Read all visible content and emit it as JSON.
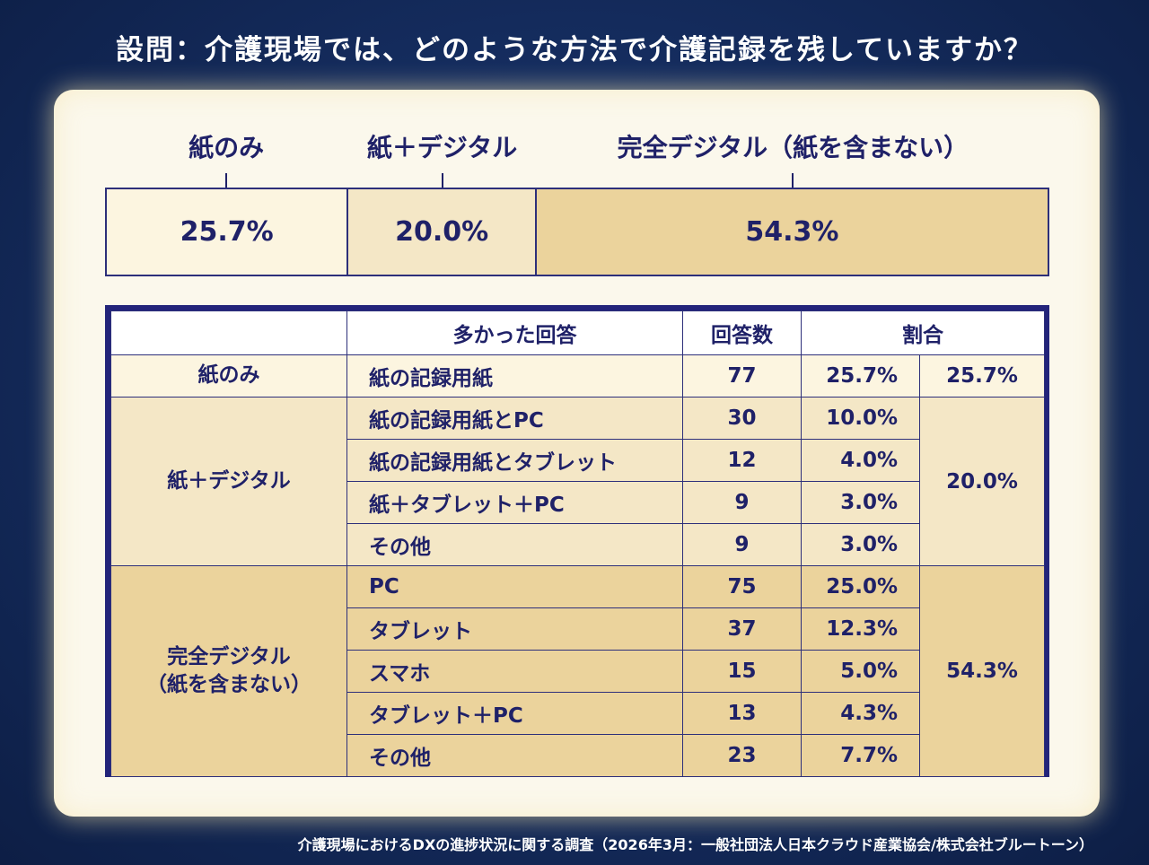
{
  "title": "設問：介護現場では、どのような方法で介護記録を残していますか？",
  "colors": {
    "background": "#142b5c",
    "text": "#1f2168",
    "light": "#fcf5e0",
    "mid": "#f4e7c6",
    "dark": "#ebd39c"
  },
  "chart_data": {
    "type": "bar",
    "orientation": "horizontal-stacked",
    "categories": [
      "紙のみ",
      "紙＋デジタル",
      "完全デジタル（紙を含まない）"
    ],
    "values": [
      25.7,
      20.0,
      54.3
    ],
    "value_labels": [
      "25.7%",
      "20.0%",
      "54.3%"
    ],
    "unit": "%",
    "colors": [
      "#fcf5e0",
      "#f4e7c6",
      "#ebd39c"
    ]
  },
  "table": {
    "headers": [
      "多かった回答",
      "回答数",
      "割合"
    ],
    "sections": [
      {
        "label": "紙のみ",
        "label_lines": [
          "紙のみ"
        ],
        "total": "25.7%",
        "color": "#fcf5e0",
        "rows": [
          {
            "answer": "紙の記録用紙",
            "count": "77",
            "pct": "25.7%"
          }
        ]
      },
      {
        "label": "紙＋デジタル",
        "label_lines": [
          "紙＋デジタル"
        ],
        "total": "20.0%",
        "color": "#f4e7c6",
        "rows": [
          {
            "answer": "紙の記録用紙とPC",
            "count": "30",
            "pct": "10.0%"
          },
          {
            "answer": "紙の記録用紙とタブレット",
            "count": "12",
            "pct": "4.0%"
          },
          {
            "answer": "紙＋タブレット＋PC",
            "count": "9",
            "pct": "3.0%"
          },
          {
            "answer": "その他",
            "count": "9",
            "pct": "3.0%"
          }
        ]
      },
      {
        "label": "完全デジタル（紙を含まない）",
        "label_lines": [
          "完全デジタル",
          "（紙を含まない）"
        ],
        "total": "54.3%",
        "color": "#ebd39c",
        "rows": [
          {
            "answer": "PC",
            "count": "75",
            "pct": "25.0%"
          },
          {
            "answer": "タブレット",
            "count": "37",
            "pct": "12.3%"
          },
          {
            "answer": "スマホ",
            "count": "15",
            "pct": "5.0%"
          },
          {
            "answer": "タブレット＋PC",
            "count": "13",
            "pct": "4.3%"
          },
          {
            "answer": "その他",
            "count": "23",
            "pct": "7.7%"
          }
        ]
      }
    ]
  },
  "footer": "介護現場におけるDXの進捗状況に関する調査（2026年3月：一般社団法人日本クラウド産業協会/株式会社ブルートーン）"
}
